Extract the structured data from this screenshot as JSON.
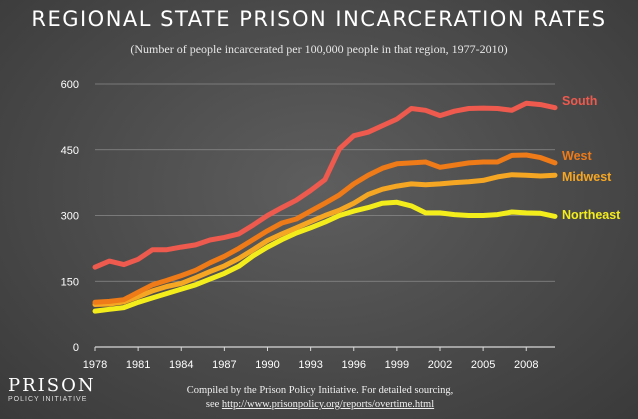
{
  "header": {
    "title": "REGIONAL STATE PRISON INCARCERATION RATES",
    "subtitle": "(Number of people incarcerated per 100,000 people in that region, 1977-2010)"
  },
  "footer": {
    "line1": "Compiled by the Prison Policy Initiative. For detailed sourcing,",
    "line2_prefix": "see ",
    "link": "http://www.prisonpolicy.org/reports/overtime.html"
  },
  "logo": {
    "big": "PRISON",
    "small": "POLICY INITIATIVE"
  },
  "chart_data": {
    "type": "line",
    "title": "REGIONAL STATE PRISON INCARCERATION RATES",
    "subtitle": "(Number of people incarcerated per 100,000 people in that region, 1977-2010)",
    "xlabel": "",
    "ylabel": "",
    "xlim": [
      1978,
      2010
    ],
    "ylim": [
      0,
      600
    ],
    "xticks": [
      1978,
      1981,
      1984,
      1987,
      1990,
      1993,
      1996,
      1999,
      2002,
      2005,
      2008
    ],
    "yticks": [
      0,
      150,
      300,
      450,
      600
    ],
    "grid": true,
    "legend": "right-end-labels",
    "x": [
      1978,
      1979,
      1980,
      1981,
      1982,
      1983,
      1984,
      1985,
      1986,
      1987,
      1988,
      1989,
      1990,
      1991,
      1992,
      1993,
      1994,
      1995,
      1996,
      1997,
      1998,
      1999,
      2000,
      2001,
      2002,
      2003,
      2004,
      2005,
      2006,
      2007,
      2008,
      2009,
      2010
    ],
    "series": [
      {
        "name": "South",
        "color": "#ee5a4e",
        "values": [
          182,
          196,
          188,
          200,
          222,
          222,
          228,
          233,
          244,
          250,
          258,
          278,
          300,
          318,
          335,
          357,
          382,
          452,
          482,
          490,
          505,
          520,
          544,
          540,
          528,
          538,
          544,
          545,
          544,
          540,
          556,
          553,
          546
        ]
      },
      {
        "name": "West",
        "color": "#ee7a18",
        "values": [
          102,
          104,
          108,
          125,
          142,
          152,
          163,
          175,
          192,
          207,
          225,
          245,
          265,
          283,
          292,
          310,
          328,
          347,
          372,
          392,
          408,
          418,
          420,
          422,
          410,
          415,
          420,
          422,
          422,
          437,
          438,
          432,
          420
        ]
      },
      {
        "name": "Midwest",
        "color": "#f5a623",
        "values": [
          97,
          98,
          103,
          115,
          128,
          138,
          145,
          158,
          172,
          185,
          202,
          222,
          243,
          258,
          272,
          286,
          300,
          312,
          328,
          348,
          360,
          367,
          372,
          370,
          372,
          375,
          377,
          380,
          388,
          393,
          392,
          390,
          392
        ]
      },
      {
        "name": "Northeast",
        "color": "#f4ed1c",
        "values": [
          82,
          86,
          90,
          102,
          112,
          122,
          132,
          142,
          155,
          168,
          184,
          208,
          228,
          245,
          260,
          272,
          285,
          300,
          310,
          318,
          328,
          330,
          322,
          306,
          306,
          302,
          300,
          300,
          302,
          308,
          306,
          305,
          298
        ]
      }
    ]
  }
}
